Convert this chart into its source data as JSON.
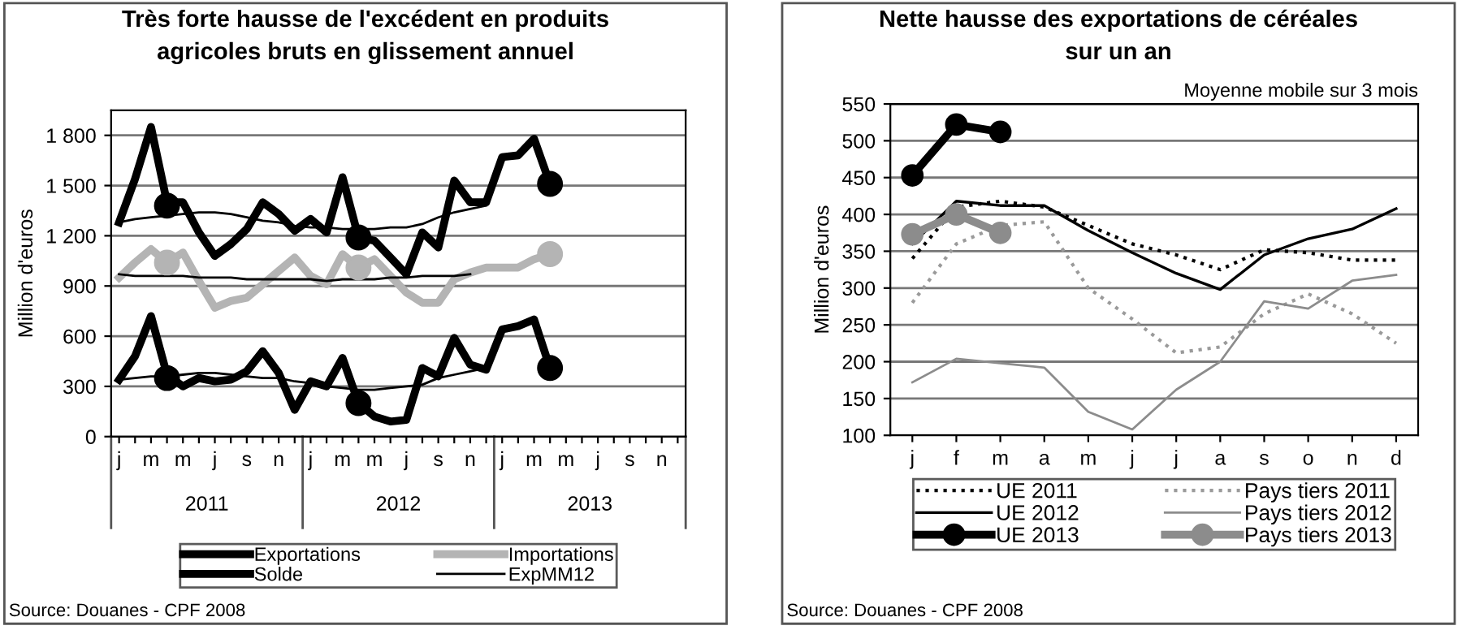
{
  "chart_data": [
    {
      "type": "line",
      "title": "Très forte hausse de l'excédent en produits\nagricoles bruts en glissement annuel",
      "ylabel": "Million d'euros",
      "categories": [
        "j",
        null,
        "m",
        null,
        "m",
        null,
        "j",
        null,
        "s",
        null,
        "n",
        null,
        "j",
        null,
        "m",
        null,
        "m",
        null,
        "j",
        null,
        "s",
        null,
        "n",
        null,
        "j",
        null,
        "m",
        null,
        "m",
        null,
        "j",
        null,
        "s",
        null,
        "n",
        null
      ],
      "ylim": [
        0,
        1950
      ],
      "yticks": [
        0,
        300,
        600,
        900,
        {
          "value": 1200,
          "label": "1 200"
        },
        {
          "value": 1500,
          "label": "1 500"
        },
        {
          "value": 1800,
          "label": "1 800"
        }
      ],
      "grid": "y",
      "legend": "bottom",
      "series": [
        {
          "name": "Exportations",
          "color": "#000000",
          "values": [
            1280,
            1540,
            1850,
            1400,
            1400,
            1220,
            1080,
            1150,
            1240,
            1400,
            1330,
            1230,
            1300,
            1220,
            1550,
            1190,
            1170,
            1070,
            970,
            1220,
            1130,
            1530,
            1400,
            1400,
            1670,
            1680,
            1780,
            1510,
            null,
            null,
            null,
            null,
            null,
            null,
            null,
            null
          ]
        },
        {
          "name": "Importations",
          "color": "#b4b4b4",
          "values": [
            950,
            1040,
            1120,
            1040,
            1100,
            930,
            770,
            810,
            830,
            910,
            990,
            1070,
            960,
            910,
            1090,
            1010,
            1060,
            960,
            860,
            800,
            800,
            940,
            980,
            1010,
            1010,
            1010,
            1060,
            1090,
            null,
            null,
            null,
            null,
            null,
            null,
            null,
            null
          ]
        },
        {
          "name": "Solde",
          "color": "#000000",
          "values": [
            340,
            480,
            720,
            370,
            300,
            350,
            330,
            340,
            390,
            510,
            380,
            160,
            330,
            300,
            470,
            200,
            120,
            90,
            100,
            410,
            360,
            590,
            430,
            400,
            640,
            660,
            700,
            410,
            null,
            null,
            null,
            null,
            null,
            null,
            null,
            null
          ]
        },
        {
          "name": "ExpMM12",
          "color": "#000000",
          "values": [
            1280,
            1300,
            1310,
            1320,
            1330,
            1340,
            1340,
            1330,
            1310,
            1290,
            1280,
            1260,
            1250,
            1250,
            1240,
            1240,
            1240,
            1250,
            1250,
            1270,
            1310,
            1340,
            1360,
            1380,
            null,
            null,
            null,
            null,
            null,
            null,
            null,
            null,
            null,
            null,
            null,
            null
          ]
        },
        {
          "color": "#000000",
          "values": [
            970,
            960,
            960,
            960,
            960,
            950,
            950,
            950,
            940,
            940,
            940,
            940,
            940,
            930,
            940,
            940,
            940,
            950,
            950,
            960,
            960,
            960,
            970,
            null,
            null,
            null,
            null,
            null,
            null,
            null,
            null,
            null,
            null,
            null,
            null,
            null
          ]
        },
        {
          "color": "#000000",
          "values": [
            340,
            350,
            360,
            360,
            370,
            380,
            380,
            370,
            360,
            350,
            350,
            330,
            320,
            300,
            290,
            280,
            280,
            290,
            300,
            310,
            350,
            370,
            390,
            410,
            null,
            null,
            null,
            null,
            null,
            null,
            null,
            null,
            null,
            null,
            null,
            null
          ]
        },
        {
          "type": "scatter",
          "color": "#000000",
          "values": [
            null,
            null,
            null,
            1380,
            null,
            null,
            null,
            null,
            null,
            null,
            null,
            null,
            null,
            null,
            null,
            1190,
            null,
            null,
            null,
            null,
            null,
            null,
            null,
            null,
            null,
            null,
            null,
            1510,
            null,
            null,
            null,
            null,
            null,
            null,
            null,
            null
          ]
        },
        {
          "type": "scatter",
          "color": "#b4b4b4",
          "values": [
            null,
            null,
            null,
            1040,
            null,
            null,
            null,
            null,
            null,
            null,
            null,
            null,
            null,
            null,
            null,
            1010,
            null,
            null,
            null,
            null,
            null,
            null,
            null,
            null,
            null,
            null,
            null,
            1090,
            null,
            null,
            null,
            null,
            null,
            null,
            null,
            null
          ]
        },
        {
          "type": "scatter",
          "color": "#000000",
          "values": [
            null,
            null,
            null,
            350,
            null,
            null,
            null,
            null,
            null,
            null,
            null,
            null,
            null,
            null,
            null,
            200,
            null,
            null,
            null,
            null,
            null,
            null,
            null,
            null,
            null,
            null,
            null,
            410,
            null,
            null,
            null,
            null,
            null,
            null,
            null,
            null
          ]
        }
      ],
      "annotations": [
        "2011",
        "2012",
        "2013",
        "Source: Douanes - CPF 2008"
      ]
    },
    {
      "type": "line",
      "title": "Nette hausse des exportations de céréales\nsur un an",
      "subtitle": "Moyenne mobile sur 3 mois",
      "ylabel": "Million d'euros",
      "categories": [
        "j",
        "f",
        "m",
        "a",
        "m",
        "j",
        "j",
        "a",
        "s",
        "o",
        "n",
        "d"
      ],
      "ylim": [
        100,
        550
      ],
      "yticks": [
        100,
        150,
        200,
        250,
        300,
        350,
        400,
        450,
        500,
        550
      ],
      "grid": "y",
      "legend": "bottom",
      "series": [
        {
          "name": "UE 2011",
          "color": "#000000",
          "line_style": "dotted",
          "values": [
            340,
            410,
            418,
            410,
            385,
            360,
            345,
            325,
            352,
            348,
            338,
            338
          ]
        },
        {
          "name": "Pays tiers 2011",
          "color": "#9a9a9a",
          "line_style": "dotted",
          "values": [
            280,
            360,
            385,
            390,
            300,
            258,
            212,
            220,
            265,
            292,
            265,
            225
          ]
        },
        {
          "name": "UE 2012",
          "color": "#000000",
          "values": [
            360,
            418,
            412,
            412,
            378,
            348,
            320,
            298,
            345,
            367,
            380,
            408
          ]
        },
        {
          "name": "Pays tiers 2012",
          "color": "#8c8c8c",
          "values": [
            172,
            204,
            198,
            192,
            132,
            108,
            162,
            200,
            282,
            272,
            310,
            318
          ]
        },
        {
          "name": "UE 2013",
          "color": "#000000",
          "marker": "circle",
          "values": [
            453,
            522,
            512,
            null,
            null,
            null,
            null,
            null,
            null,
            null,
            null,
            null
          ]
        },
        {
          "name": "Pays tiers 2013",
          "color": "#8c8c8c",
          "marker": "circle",
          "values": [
            373,
            400,
            375,
            null,
            null,
            null,
            null,
            null,
            null,
            null,
            null,
            null
          ]
        }
      ],
      "annotations": [
        "Source: Douanes - CPF 2008"
      ]
    }
  ]
}
